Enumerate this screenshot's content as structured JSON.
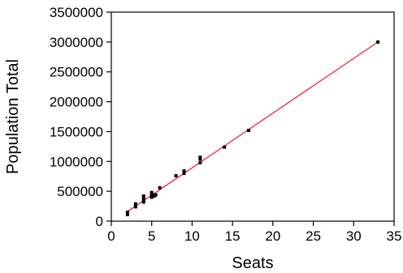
{
  "chart_data": {
    "type": "scatter",
    "title": "",
    "xlabel": "Seats",
    "ylabel": "Population Total",
    "xlim": [
      0,
      35
    ],
    "ylim": [
      0,
      3500000
    ],
    "x_ticks": [
      0,
      5,
      10,
      15,
      20,
      25,
      30,
      35
    ],
    "y_ticks": [
      0,
      500000,
      1000000,
      1500000,
      2000000,
      2500000,
      3000000,
      3500000
    ],
    "grid": false,
    "legend": "none",
    "point_color": "#000000",
    "fit_line_color": "#e8293a",
    "points": [
      {
        "x": 2,
        "y": 110000
      },
      {
        "x": 2,
        "y": 150000
      },
      {
        "x": 3,
        "y": 240000
      },
      {
        "x": 3,
        "y": 290000
      },
      {
        "x": 4,
        "y": 320000
      },
      {
        "x": 4,
        "y": 360000
      },
      {
        "x": 4,
        "y": 400000
      },
      {
        "x": 4,
        "y": 420000
      },
      {
        "x": 5,
        "y": 400000
      },
      {
        "x": 5,
        "y": 430000
      },
      {
        "x": 5,
        "y": 460000
      },
      {
        "x": 5,
        "y": 480000
      },
      {
        "x": 5.3,
        "y": 420000
      },
      {
        "x": 5.5,
        "y": 440000
      },
      {
        "x": 6,
        "y": 560000
      },
      {
        "x": 8,
        "y": 760000
      },
      {
        "x": 9,
        "y": 800000
      },
      {
        "x": 9,
        "y": 840000
      },
      {
        "x": 11,
        "y": 980000
      },
      {
        "x": 11,
        "y": 1040000
      },
      {
        "x": 11,
        "y": 1070000
      },
      {
        "x": 14,
        "y": 1240000
      },
      {
        "x": 17,
        "y": 1520000
      },
      {
        "x": 33,
        "y": 3000000
      }
    ],
    "fit_line": {
      "x": [
        2,
        33
      ],
      "y": [
        160000,
        3000000
      ]
    }
  }
}
